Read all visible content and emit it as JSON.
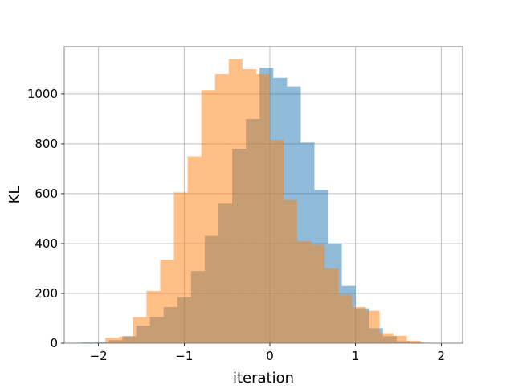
{
  "chart_data": {
    "type": "bar",
    "subtype": "overlapping histogram",
    "title": "",
    "xlabel": "iteration",
    "ylabel": "KL",
    "xlim": [
      -2.4,
      2.25
    ],
    "ylim": [
      0,
      1190
    ],
    "xticks": [
      -2,
      -1,
      0,
      1,
      2
    ],
    "xtick_labels": [
      "−2",
      "−1",
      "0",
      "1",
      "2"
    ],
    "yticks": [
      0,
      200,
      400,
      600,
      800,
      1000
    ],
    "ytick_labels": [
      "0",
      "200",
      "400",
      "600",
      "800",
      "1000"
    ],
    "grid": true,
    "legend": false,
    "series": [
      {
        "color": "#1f77b4",
        "alpha": 0.5,
        "bin_edges": [
          -2.2,
          -2.04,
          -1.88,
          -1.72,
          -1.56,
          -1.4,
          -1.24,
          -1.08,
          -0.92,
          -0.76,
          -0.6,
          -0.44,
          -0.28,
          -0.12,
          0.04,
          0.2,
          0.36,
          0.52,
          0.68,
          0.84,
          1.0,
          1.16,
          1.32,
          1.48,
          1.64,
          1.8
        ],
        "counts": [
          3,
          5,
          12,
          28,
          70,
          105,
          145,
          185,
          290,
          430,
          560,
          780,
          900,
          1105,
          1065,
          1030,
          805,
          615,
          400,
          230,
          140,
          60,
          28,
          8,
          3
        ]
      },
      {
        "color": "#ff7f0e",
        "alpha": 0.5,
        "bin_edges": [
          -2.08,
          -1.92,
          -1.76,
          -1.6,
          -1.44,
          -1.28,
          -1.12,
          -0.96,
          -0.8,
          -0.64,
          -0.48,
          -0.32,
          -0.16,
          0.0,
          0.16,
          0.32,
          0.48,
          0.64,
          0.8,
          0.96,
          1.12,
          1.28,
          1.44,
          1.6,
          1.76,
          1.92
        ],
        "counts": [
          2,
          22,
          27,
          105,
          210,
          335,
          605,
          750,
          1015,
          1080,
          1140,
          1100,
          1080,
          815,
          575,
          410,
          395,
          300,
          195,
          145,
          130,
          40,
          30,
          10,
          2
        ]
      }
    ]
  }
}
